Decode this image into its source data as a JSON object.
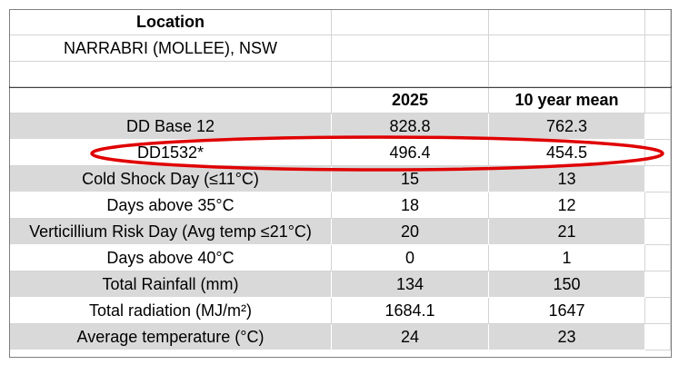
{
  "header": {
    "title": "Location",
    "location": "NARRABRI (MOLLEE), NSW"
  },
  "table": {
    "columns": [
      "2025",
      "10 year mean"
    ],
    "rows": [
      [
        "DD Base 12",
        "828.8",
        "762.3"
      ],
      [
        "DD1532*",
        "496.4",
        "454.5"
      ],
      [
        "Cold Shock Day (≤11°C)",
        "15",
        "13"
      ],
      [
        "Days above 35°C",
        "18",
        "12"
      ],
      [
        "Verticillium Risk Day (Avg temp ≤21°C)",
        "20",
        "21"
      ],
      [
        "Days above 40°C",
        "0",
        "1"
      ],
      [
        "Total Rainfall (mm)",
        "134",
        "150"
      ],
      [
        "Total radiation (MJ/m²)",
        "1684.1",
        "1647"
      ],
      [
        "Average temperature (°C)",
        "24",
        "23"
      ]
    ]
  }
}
